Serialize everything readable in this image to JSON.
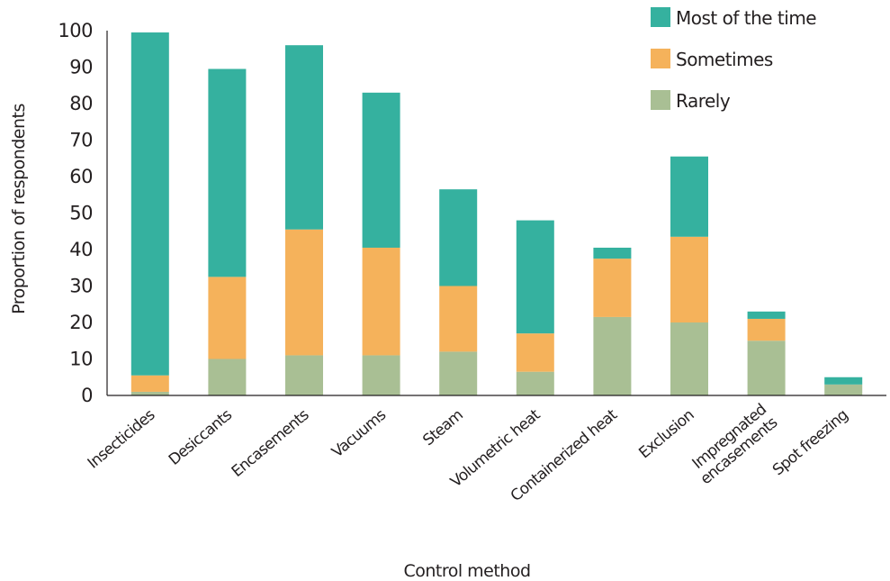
{
  "chart_data": {
    "type": "bar",
    "stacked": true,
    "xlabel": "Control method",
    "ylabel": "Proportion of respondents",
    "ylim": [
      0,
      100
    ],
    "yticks": [
      0,
      10,
      20,
      30,
      40,
      50,
      60,
      70,
      80,
      90,
      100
    ],
    "grid": false,
    "legend_position": "top-right",
    "categories": [
      [
        "Insecticides"
      ],
      [
        "Desiccants"
      ],
      [
        "Encasements"
      ],
      [
        "Vacuums"
      ],
      [
        "Steam"
      ],
      [
        "Volumetric heat"
      ],
      [
        "Containerized heat"
      ],
      [
        "Exclusion"
      ],
      [
        "Impregnated",
        "encasements"
      ],
      [
        "Spot freezing"
      ]
    ],
    "series": [
      {
        "name": "Rarely",
        "color": "#a9bf94",
        "values": [
          1,
          10,
          11,
          11,
          12,
          6.5,
          21.5,
          20,
          15,
          3
        ]
      },
      {
        "name": "Sometimes",
        "color": "#f5b25b",
        "values": [
          4.5,
          22.5,
          34.5,
          29.5,
          18,
          10.5,
          16,
          23.5,
          6,
          0
        ]
      },
      {
        "name": "Most of the time",
        "color": "#35b19f",
        "values": [
          94,
          57,
          50.5,
          42.5,
          26.5,
          31,
          3,
          22,
          2,
          2
        ]
      }
    ],
    "legend_order": [
      "Most of the time",
      "Sometimes",
      "Rarely"
    ]
  }
}
